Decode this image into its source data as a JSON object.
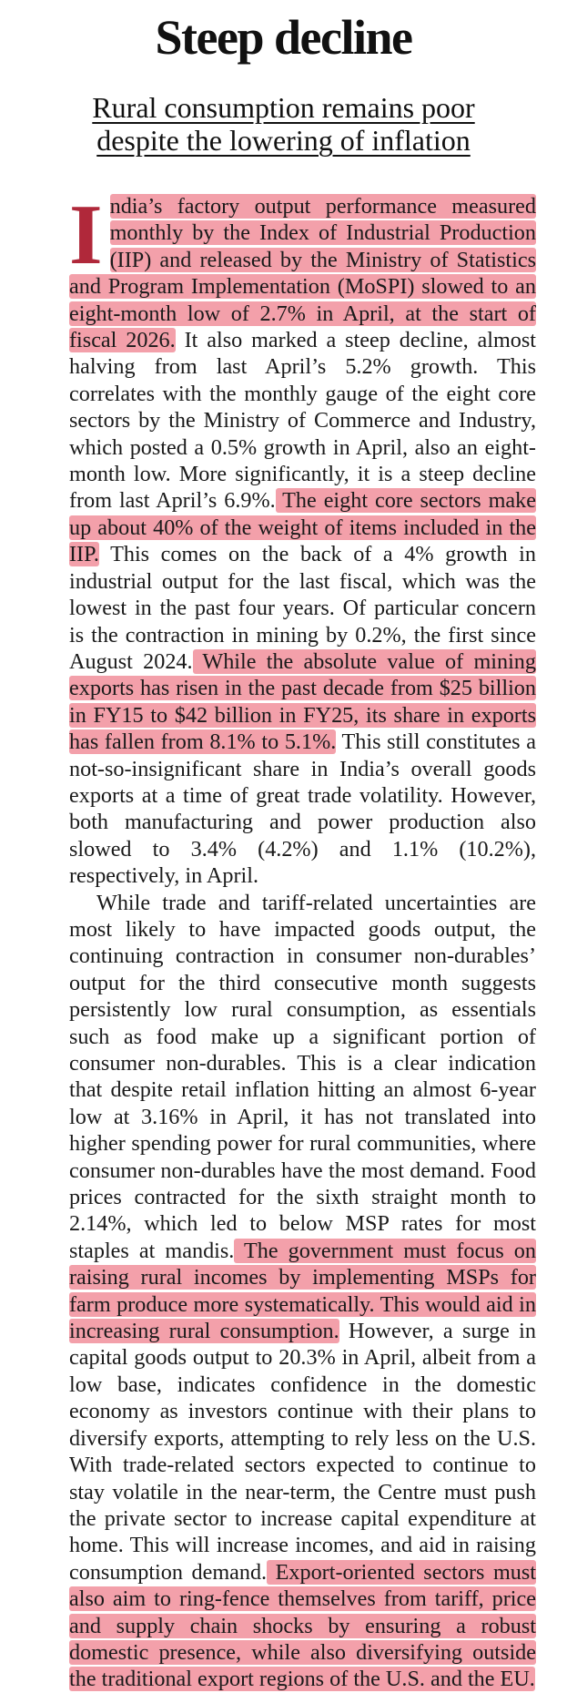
{
  "header": {
    "headline": "Steep decline",
    "subhead_line1": "Rural consumption remains poor",
    "subhead_line2": "despite the lowering of inflation"
  },
  "article": {
    "dropcap": "I",
    "p1_hl1": "ndia’s factory output performance measured monthly by the Index of Industrial Production (IIP) and released by the Ministry of Statistics and Program Implementation (MoSPI) slowed to an eight-month low of 2.7% in April, at the start of fiscal 2026.",
    "p1_t1": " It also marked a steep decline, almost halving from last April’s 5.2% growth. This correlates with the monthly gauge of the eight core sectors by the Ministry of Commerce and Industry, which posted a 0.5% growth in April, also an eight-month low. More significantly, it is a steep decline from last April’s 6.9%.",
    "p1_hl2": " The eight core sectors make up about 40% of the weight of items included in the IIP.",
    "p1_t2": " This comes on the back of a 4% growth in industrial output for the last fiscal, which was the lowest in the past four years. Of particular concern is the contraction in mining by 0.2%, the first since August 2024.",
    "p1_hl3": " While the absolute value of mining exports has risen in the past decade from $25 billion in FY15 to $42 billion in FY25, its share in exports has fallen from 8.1% to 5.1%.",
    "p1_t3": " This still constitutes a not-so-insignificant share in India’s overall goods exports at a time of great trade volatility. However, both manufacturing and power production also slowed to 3.4% (4.2%) and 1.1% (10.2%), respectively, in April.",
    "p2_t1": "While trade and tariff-related uncertainties are most likely to have impacted goods output, the continuing contraction in consumer non-durables’ output for the third consecutive month suggests persistently low rural consumption, as essentials such as food make up a significant portion of consumer non-durables. This is a clear indication that despite retail inflation hitting an almost 6-year low at 3.16% in April, it has not translated into higher spending power for rural communities, where consumer non-durables have the most demand. Food prices contracted for the sixth straight month to 2.14%, which led to below MSP rates for most staples at mandis.",
    "p2_hl1": " The government must focus on raising rural incomes by implementing MSPs for farm produce more systematically. This would aid in increasing rural consumption.",
    "p2_t2": " However, a surge in capital goods output to 20.3% in April, albeit from a low base, indicates confidence in the domestic economy as investors continue with their plans to diversify exports, attempting to rely less on the U.S. With trade-related sectors expected to continue to stay volatile in the near-term, the Centre must push the private sector to increase capital expenditure at home. This will increase incomes, and aid in raising consumption demand.",
    "p2_hl2": " Export-oriented sectors must also aim to ring-fence themselves from tariff, price and supply chain shocks by ensuring a robust domestic presence, while also diversifying outside the traditional export regions of the U.S. and the EU."
  },
  "colors": {
    "highlight": "#f3a0aa",
    "dropcap": "#b0283a"
  }
}
